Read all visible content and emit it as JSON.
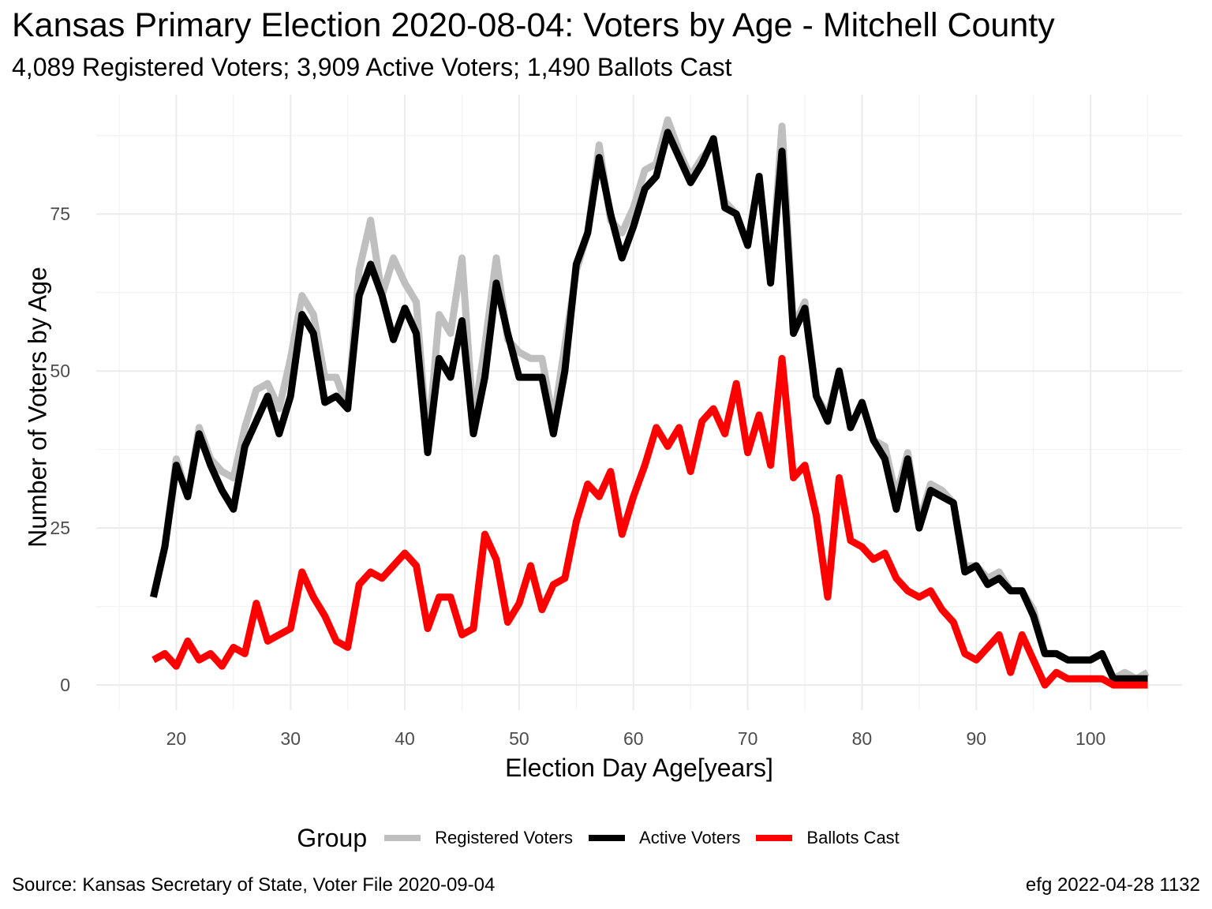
{
  "title": "Kansas Primary Election 2020-08-04:  Voters by Age - Mitchell County",
  "subtitle": "4,089 Registered Voters; 3,909 Active Voters; 1,490 Ballots Cast",
  "caption_left": "Source:  Kansas Secretary of State, Voter File  2020-09-04",
  "caption_right": "efg 2022-04-28 1132",
  "legend_title": "Group",
  "chart_data": {
    "type": "line",
    "xlabel": "Election Day Age[years]",
    "ylabel": "Number of Voters by Age",
    "xlim": [
      13,
      108
    ],
    "ylim": [
      -4,
      94
    ],
    "x_ticks": [
      20,
      30,
      40,
      50,
      60,
      70,
      80,
      90,
      100
    ],
    "y_ticks": [
      0,
      25,
      50,
      75
    ],
    "grid": true,
    "legend_position": "bottom",
    "x": [
      18,
      19,
      20,
      21,
      22,
      23,
      24,
      25,
      26,
      27,
      28,
      29,
      30,
      31,
      32,
      33,
      34,
      35,
      36,
      37,
      38,
      39,
      40,
      41,
      42,
      43,
      44,
      45,
      46,
      47,
      48,
      49,
      50,
      51,
      52,
      53,
      54,
      55,
      56,
      57,
      58,
      59,
      60,
      61,
      62,
      63,
      64,
      65,
      66,
      67,
      68,
      69,
      70,
      71,
      72,
      73,
      74,
      75,
      76,
      77,
      78,
      79,
      80,
      81,
      82,
      83,
      84,
      85,
      86,
      87,
      88,
      89,
      90,
      91,
      92,
      93,
      94,
      95,
      96,
      97,
      98,
      99,
      100,
      101,
      102,
      103,
      104,
      105
    ],
    "series": [
      {
        "name": "Registered Voters",
        "color": "#bfbfbf",
        "values": [
          14,
          22,
          36,
          30,
          41,
          36,
          34,
          33,
          41,
          47,
          48,
          44,
          52,
          62,
          59,
          49,
          49,
          44,
          66,
          74,
          62,
          68,
          64,
          61,
          38,
          59,
          56,
          68,
          42,
          54,
          68,
          55,
          53,
          52,
          52,
          42,
          54,
          66,
          72,
          86,
          74,
          72,
          76,
          82,
          83,
          90,
          85,
          81,
          84,
          86,
          77,
          75,
          70,
          81,
          64,
          89,
          57,
          61,
          46,
          43,
          50,
          41,
          45,
          39,
          38,
          30,
          37,
          26,
          32,
          31,
          29,
          19,
          19,
          17,
          18,
          15,
          15,
          12,
          5,
          5,
          4,
          4,
          4,
          5,
          1,
          2,
          1,
          2
        ]
      },
      {
        "name": "Active Voters",
        "color": "#000000",
        "values": [
          14,
          22,
          35,
          30,
          40,
          35,
          31,
          28,
          38,
          42,
          46,
          40,
          46,
          59,
          56,
          45,
          46,
          44,
          62,
          67,
          62,
          55,
          60,
          56,
          37,
          52,
          49,
          58,
          40,
          49,
          64,
          56,
          49,
          49,
          49,
          40,
          50,
          67,
          72,
          84,
          75,
          68,
          73,
          79,
          81,
          88,
          84,
          80,
          83,
          87,
          76,
          75,
          70,
          81,
          64,
          85,
          56,
          60,
          46,
          42,
          50,
          41,
          45,
          39,
          36,
          28,
          36,
          25,
          31,
          30,
          29,
          18,
          19,
          16,
          17,
          15,
          15,
          11,
          5,
          5,
          4,
          4,
          4,
          5,
          1,
          1,
          1,
          1
        ]
      },
      {
        "name": "Ballots Cast",
        "color": "#ff0000",
        "values": [
          4,
          5,
          3,
          7,
          4,
          5,
          3,
          6,
          5,
          13,
          7,
          8,
          9,
          18,
          14,
          11,
          7,
          6,
          16,
          18,
          17,
          19,
          21,
          19,
          9,
          14,
          14,
          8,
          9,
          24,
          20,
          10,
          13,
          19,
          12,
          16,
          17,
          26,
          32,
          30,
          34,
          24,
          30,
          35,
          41,
          38,
          41,
          34,
          42,
          44,
          40,
          48,
          37,
          43,
          35,
          52,
          33,
          35,
          27,
          14,
          33,
          23,
          22,
          20,
          21,
          17,
          15,
          14,
          15,
          12,
          10,
          5,
          4,
          6,
          8,
          2,
          8,
          4,
          0,
          2,
          1,
          1,
          1,
          1,
          0,
          0,
          0,
          0
        ]
      }
    ]
  }
}
